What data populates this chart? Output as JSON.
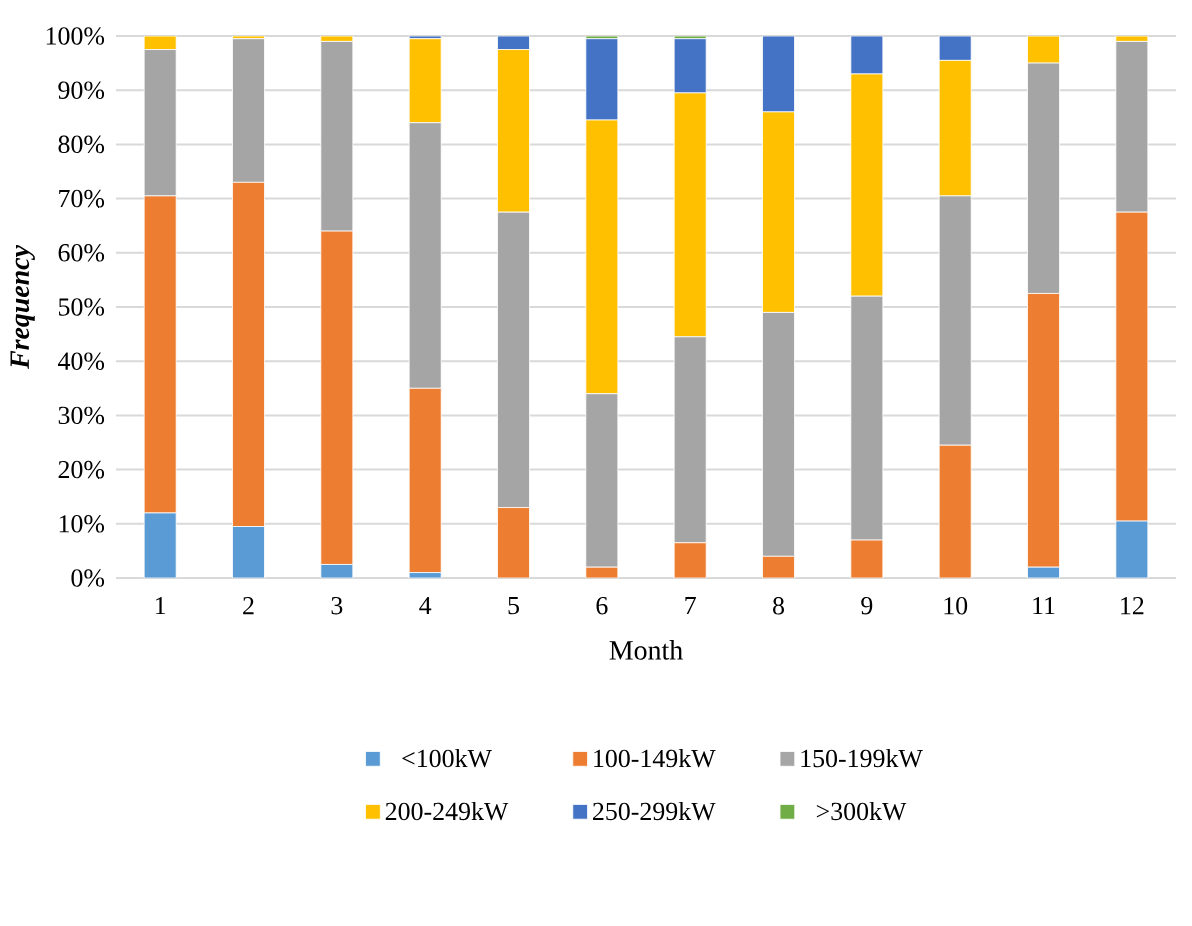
{
  "chart_data": {
    "type": "bar",
    "stacked": true,
    "xlabel": "Month",
    "ylabel": "Frequency",
    "categories": [
      "1",
      "2",
      "3",
      "4",
      "5",
      "6",
      "7",
      "8",
      "9",
      "10",
      "11",
      "12"
    ],
    "series": [
      {
        "name": "<100kW",
        "color": "#5b9bd5",
        "values": [
          12,
          9.5,
          2.5,
          1,
          0,
          0,
          0,
          0,
          0,
          0,
          2,
          10.5
        ]
      },
      {
        "name": "100-149kW",
        "color": "#ed7d31",
        "values": [
          58.5,
          63.5,
          61.5,
          34,
          13,
          2,
          6.5,
          4,
          7,
          24.5,
          50.5,
          57
        ]
      },
      {
        "name": "150-199kW",
        "color": "#a5a5a5",
        "values": [
          27,
          26.5,
          35,
          49,
          54.5,
          32,
          38,
          45,
          45,
          46,
          42.5,
          31.5
        ]
      },
      {
        "name": "200-249kW",
        "color": "#ffc000",
        "values": [
          2.5,
          0.5,
          1,
          15.5,
          30,
          50.5,
          45,
          37,
          41,
          25,
          5,
          1
        ]
      },
      {
        "name": "250-299kW",
        "color": "#4472c4",
        "values": [
          0,
          0,
          0,
          0.5,
          2.5,
          15,
          10,
          14,
          7,
          4.5,
          0,
          0
        ]
      },
      {
        "name": ">300kW",
        "color": "#70ad47",
        "values": [
          0,
          0,
          0,
          0,
          0,
          0.5,
          0.5,
          0,
          0,
          0,
          0,
          0
        ]
      }
    ],
    "ylim": [
      0,
      100
    ],
    "yticks": [
      {
        "value": 0,
        "label": "0%"
      },
      {
        "value": 10,
        "label": "10%"
      },
      {
        "value": 20,
        "label": "20%"
      },
      {
        "value": 30,
        "label": "30%"
      },
      {
        "value": 40,
        "label": "40%"
      },
      {
        "value": 50,
        "label": "50%"
      },
      {
        "value": 60,
        "label": "60%"
      },
      {
        "value": 70,
        "label": "70%"
      },
      {
        "value": 80,
        "label": "80%"
      },
      {
        "value": 90,
        "label": "90%"
      },
      {
        "value": 100,
        "label": "100%"
      }
    ],
    "grid": "y",
    "legend": "bottom"
  }
}
